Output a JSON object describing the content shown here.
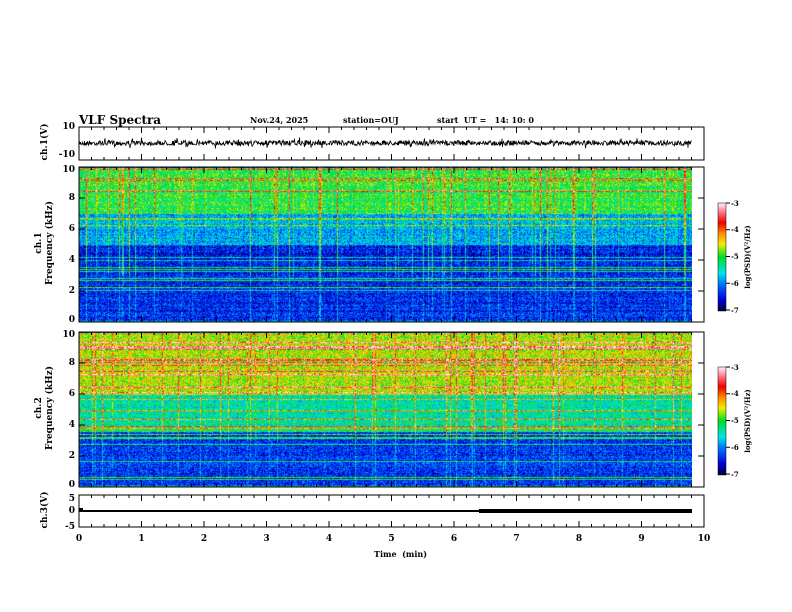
{
  "header": {
    "title": "VLF Spectra",
    "date": "Nov.24, 2025",
    "station": "station=OUJ",
    "start": "start  UT =   14: 10: 0"
  },
  "colors": {
    "trace": "#000000",
    "axis": "#000000"
  },
  "chart_data": [
    {
      "type": "line",
      "name": "ch1-waveform",
      "ylabel": "ch.1(V)",
      "ylim": [
        -10,
        10
      ],
      "yticks": [
        "10",
        "-10"
      ],
      "description_level": 0,
      "xlim": [
        0,
        10
      ]
    },
    {
      "type": "heatmap",
      "name": "ch1-spectrogram",
      "ylabel": "ch.1\nFrequency  (kHz)",
      "ylabel_lines": [
        "ch.1",
        "Frequency  (kHz)"
      ],
      "ylim": [
        0,
        10
      ],
      "yticks": [
        "0",
        "2",
        "4",
        "6",
        "8",
        "10"
      ],
      "xlim": [
        0,
        9.8
      ],
      "colorbar": {
        "label": "log(PSD)(V²/Hz)",
        "range": [
          -7,
          -3
        ],
        "ticks": [
          "-3",
          "-4",
          "-5",
          "-6",
          "-7"
        ]
      },
      "bands_log_psd": [
        {
          "f": [
            7,
            10
          ],
          "v": -5.0
        },
        {
          "f": [
            5,
            7
          ],
          "v": -5.8
        },
        {
          "f": [
            0,
            5
          ],
          "v": -6.4
        }
      ]
    },
    {
      "type": "heatmap",
      "name": "ch2-spectrogram",
      "ylabel_lines": [
        "ch.2",
        "Frequency  (kHz)"
      ],
      "ylim": [
        0,
        10
      ],
      "yticks": [
        "0",
        "2",
        "4",
        "6",
        "8",
        "10"
      ],
      "xlim": [
        0,
        9.8
      ],
      "colorbar": {
        "label": "log(PSD)(V²/Hz)",
        "range": [
          -7,
          -3
        ],
        "ticks": [
          "-3",
          "-4",
          "-5",
          "-6",
          "-7"
        ]
      },
      "bands_log_psd": [
        {
          "f": [
            6,
            10
          ],
          "v": -4.6
        },
        {
          "f": [
            4,
            6
          ],
          "v": -5.4
        },
        {
          "f": [
            3.6,
            4
          ],
          "v": -5.2
        },
        {
          "f": [
            0,
            3.6
          ],
          "v": -6.3
        }
      ]
    },
    {
      "type": "line",
      "name": "ch3-waveform",
      "ylabel": "ch.3(V)",
      "ylim": [
        -5,
        5
      ],
      "yticks": [
        "5",
        "0",
        "-5"
      ],
      "level_V": 1.5,
      "xlim": [
        0,
        9.8
      ]
    }
  ],
  "xaxis": {
    "label": "Time  (min)",
    "ticks": [
      "0",
      "1",
      "2",
      "3",
      "4",
      "5",
      "6",
      "7",
      "8",
      "9",
      "10"
    ],
    "range": [
      0,
      10
    ]
  }
}
